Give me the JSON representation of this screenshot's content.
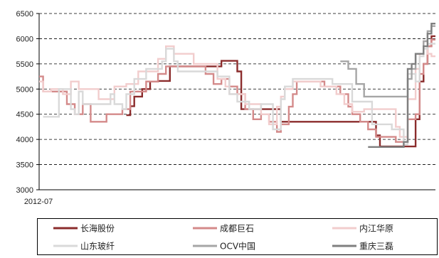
{
  "chart_data": {
    "type": "line",
    "title": "",
    "xlabel": "",
    "ylabel": "",
    "ylim": [
      3000,
      6500
    ],
    "yticks": [
      3000,
      3500,
      4000,
      4500,
      5000,
      5500,
      6000,
      6500
    ],
    "ytick_labels": [
      "3000",
      "3500",
      "4000",
      "4500",
      "5000",
      "5500",
      "6000",
      "6500"
    ],
    "xtick_labels": [
      "2012-07"
    ],
    "grid": "horizontal-dashed",
    "legend_position": "bottom",
    "series": [
      {
        "name": "长海股份",
        "color": "#8B2C2C",
        "values": [
          [
            0.22,
            4480
          ],
          [
            0.23,
            4480
          ],
          [
            0.23,
            4660
          ],
          [
            0.24,
            4660
          ],
          [
            0.24,
            4850
          ],
          [
            0.26,
            4850
          ],
          [
            0.26,
            5000
          ],
          [
            0.28,
            5000
          ],
          [
            0.28,
            5150
          ],
          [
            0.3,
            5150
          ],
          [
            0.3,
            5160
          ],
          [
            0.33,
            5160
          ],
          [
            0.33,
            5450
          ],
          [
            0.46,
            5450
          ],
          [
            0.46,
            5560
          ],
          [
            0.5,
            5560
          ],
          [
            0.5,
            5350
          ],
          [
            0.51,
            5350
          ],
          [
            0.51,
            4600
          ],
          [
            0.61,
            4600
          ],
          [
            0.61,
            4350
          ],
          [
            0.85,
            4350
          ],
          [
            0.85,
            4080
          ],
          [
            0.86,
            4080
          ],
          [
            0.86,
            3860
          ],
          [
            0.95,
            3860
          ],
          [
            0.95,
            4400
          ],
          [
            0.96,
            4400
          ],
          [
            0.96,
            5150
          ],
          [
            0.97,
            5150
          ],
          [
            0.97,
            5500
          ],
          [
            0.98,
            5500
          ],
          [
            0.98,
            5850
          ],
          [
            0.99,
            5850
          ],
          [
            0.99,
            6050
          ],
          [
            1.0,
            6050
          ]
        ]
      },
      {
        "name": "成都巨石",
        "color": "#D48A8A",
        "values": [
          [
            0.0,
            5250
          ],
          [
            0.01,
            5250
          ],
          [
            0.01,
            4950
          ],
          [
            0.07,
            4950
          ],
          [
            0.07,
            4700
          ],
          [
            0.09,
            4700
          ],
          [
            0.09,
            4500
          ],
          [
            0.11,
            4500
          ],
          [
            0.11,
            4700
          ],
          [
            0.13,
            4700
          ],
          [
            0.13,
            4350
          ],
          [
            0.17,
            4350
          ],
          [
            0.17,
            4500
          ],
          [
            0.21,
            4500
          ],
          [
            0.21,
            4600
          ],
          [
            0.23,
            4600
          ],
          [
            0.23,
            4950
          ],
          [
            0.27,
            4950
          ],
          [
            0.27,
            5150
          ],
          [
            0.3,
            5150
          ],
          [
            0.3,
            5300
          ],
          [
            0.32,
            5300
          ],
          [
            0.32,
            5450
          ],
          [
            0.42,
            5450
          ],
          [
            0.42,
            5300
          ],
          [
            0.44,
            5300
          ],
          [
            0.44,
            5100
          ],
          [
            0.46,
            5100
          ],
          [
            0.46,
            5200
          ],
          [
            0.48,
            5200
          ],
          [
            0.48,
            5050
          ],
          [
            0.5,
            5050
          ],
          [
            0.5,
            4900
          ],
          [
            0.52,
            4900
          ],
          [
            0.52,
            4600
          ],
          [
            0.54,
            4600
          ],
          [
            0.54,
            4400
          ],
          [
            0.56,
            4400
          ],
          [
            0.56,
            4500
          ],
          [
            0.58,
            4500
          ],
          [
            0.58,
            4350
          ],
          [
            0.6,
            4350
          ],
          [
            0.6,
            4150
          ],
          [
            0.61,
            4150
          ],
          [
            0.61,
            4300
          ],
          [
            0.63,
            4300
          ],
          [
            0.63,
            4650
          ],
          [
            0.64,
            4650
          ],
          [
            0.64,
            4900
          ],
          [
            0.65,
            4900
          ],
          [
            0.65,
            5150
          ],
          [
            0.72,
            5150
          ],
          [
            0.72,
            5050
          ],
          [
            0.76,
            5050
          ],
          [
            0.76,
            4900
          ],
          [
            0.78,
            4900
          ],
          [
            0.78,
            4650
          ],
          [
            0.79,
            4650
          ],
          [
            0.79,
            4500
          ],
          [
            0.81,
            4500
          ],
          [
            0.81,
            4350
          ],
          [
            0.83,
            4350
          ],
          [
            0.83,
            4200
          ],
          [
            0.85,
            4200
          ],
          [
            0.85,
            4050
          ],
          [
            0.9,
            4050
          ],
          [
            0.9,
            3950
          ],
          [
            0.93,
            3950
          ],
          [
            0.93,
            4400
          ],
          [
            0.95,
            4400
          ],
          [
            0.95,
            4500
          ],
          [
            0.96,
            4500
          ],
          [
            0.96,
            5300
          ],
          [
            0.97,
            5300
          ],
          [
            0.97,
            5500
          ],
          [
            0.98,
            5500
          ],
          [
            0.98,
            5850
          ],
          [
            0.99,
            5850
          ],
          [
            0.99,
            5980
          ],
          [
            1.0,
            5980
          ]
        ]
      },
      {
        "name": "内江华原",
        "color": "#F2CDCD",
        "values": [
          [
            0.0,
            5150
          ],
          [
            0.01,
            5150
          ],
          [
            0.01,
            4950
          ],
          [
            0.03,
            4950
          ],
          [
            0.03,
            5000
          ],
          [
            0.06,
            5000
          ],
          [
            0.06,
            4900
          ],
          [
            0.08,
            4900
          ],
          [
            0.08,
            5150
          ],
          [
            0.1,
            5150
          ],
          [
            0.1,
            5000
          ],
          [
            0.15,
            5000
          ],
          [
            0.15,
            4800
          ],
          [
            0.19,
            4800
          ],
          [
            0.19,
            5050
          ],
          [
            0.22,
            5050
          ],
          [
            0.22,
            5100
          ],
          [
            0.25,
            5100
          ],
          [
            0.25,
            5350
          ],
          [
            0.3,
            5350
          ],
          [
            0.3,
            5600
          ],
          [
            0.32,
            5600
          ],
          [
            0.32,
            5850
          ],
          [
            0.34,
            5850
          ],
          [
            0.34,
            5700
          ],
          [
            0.39,
            5700
          ],
          [
            0.39,
            5500
          ],
          [
            0.45,
            5500
          ],
          [
            0.45,
            5200
          ],
          [
            0.47,
            5200
          ],
          [
            0.47,
            5050
          ],
          [
            0.48,
            5050
          ],
          [
            0.48,
            4900
          ],
          [
            0.52,
            4900
          ],
          [
            0.52,
            4700
          ],
          [
            0.56,
            4700
          ],
          [
            0.56,
            4500
          ],
          [
            0.58,
            4500
          ],
          [
            0.58,
            4300
          ],
          [
            0.6,
            4300
          ],
          [
            0.6,
            4650
          ],
          [
            0.61,
            4650
          ],
          [
            0.61,
            4850
          ],
          [
            0.62,
            4850
          ],
          [
            0.62,
            5000
          ],
          [
            0.64,
            5000
          ],
          [
            0.64,
            5150
          ],
          [
            0.71,
            5150
          ],
          [
            0.71,
            5050
          ],
          [
            0.75,
            5050
          ],
          [
            0.75,
            4900
          ],
          [
            0.77,
            4900
          ],
          [
            0.77,
            4700
          ],
          [
            0.79,
            4700
          ],
          [
            0.79,
            4550
          ],
          [
            0.82,
            4550
          ],
          [
            0.82,
            4600
          ],
          [
            0.9,
            4600
          ],
          [
            0.9,
            4250
          ],
          [
            0.91,
            4250
          ],
          [
            0.91,
            4050
          ],
          [
            0.93,
            4050
          ],
          [
            0.93,
            4800
          ],
          [
            0.95,
            4800
          ],
          [
            0.95,
            5400
          ],
          [
            0.96,
            5400
          ],
          [
            0.96,
            5700
          ],
          [
            0.97,
            5700
          ],
          [
            0.97,
            5950
          ],
          [
            0.98,
            5950
          ],
          [
            0.98,
            5700
          ],
          [
            0.99,
            5700
          ],
          [
            0.99,
            5650
          ],
          [
            1.0,
            5650
          ]
        ]
      },
      {
        "name": "山东玻纤",
        "color": "#D9D9D9",
        "values": [
          [
            0.01,
            4450
          ],
          [
            0.05,
            4450
          ],
          [
            0.05,
            5000
          ],
          [
            0.08,
            5000
          ],
          [
            0.08,
            4600
          ],
          [
            0.09,
            4600
          ],
          [
            0.09,
            4500
          ],
          [
            0.1,
            4500
          ],
          [
            0.1,
            4950
          ],
          [
            0.11,
            4950
          ],
          [
            0.11,
            4700
          ],
          [
            0.18,
            4700
          ],
          [
            0.18,
            4900
          ],
          [
            0.19,
            4900
          ],
          [
            0.19,
            4700
          ],
          [
            0.21,
            4700
          ],
          [
            0.21,
            4600
          ],
          [
            0.22,
            4600
          ],
          [
            0.22,
            4900
          ],
          [
            0.24,
            4900
          ],
          [
            0.24,
            5200
          ],
          [
            0.27,
            5200
          ],
          [
            0.27,
            5400
          ],
          [
            0.31,
            5400
          ],
          [
            0.31,
            5550
          ],
          [
            0.32,
            5550
          ],
          [
            0.32,
            5800
          ],
          [
            0.34,
            5800
          ],
          [
            0.34,
            5550
          ],
          [
            0.35,
            5550
          ],
          [
            0.35,
            5350
          ],
          [
            0.45,
            5350
          ],
          [
            0.45,
            5250
          ],
          [
            0.48,
            5250
          ],
          [
            0.48,
            4900
          ],
          [
            0.5,
            4900
          ],
          [
            0.5,
            4750
          ],
          [
            0.53,
            4750
          ],
          [
            0.53,
            4600
          ],
          [
            0.56,
            4600
          ],
          [
            0.56,
            4700
          ],
          [
            0.59,
            4700
          ],
          [
            0.59,
            4200
          ],
          [
            0.61,
            4200
          ],
          [
            0.61,
            4800
          ],
          [
            0.62,
            4800
          ],
          [
            0.62,
            5050
          ],
          [
            0.64,
            5050
          ],
          [
            0.64,
            5200
          ],
          [
            0.74,
            5200
          ],
          [
            0.74,
            5100
          ],
          [
            0.79,
            5100
          ],
          [
            0.79,
            4750
          ],
          [
            0.84,
            4750
          ],
          [
            0.84,
            4300
          ],
          [
            0.89,
            4300
          ],
          [
            0.89,
            4200
          ],
          [
            0.92,
            4200
          ],
          [
            0.92,
            3900
          ],
          [
            0.93,
            3900
          ],
          [
            0.93,
            5300
          ],
          [
            0.95,
            5300
          ],
          [
            0.95,
            5150
          ],
          [
            0.96,
            5150
          ],
          [
            0.96,
            5650
          ],
          [
            0.97,
            5650
          ],
          [
            0.97,
            5800
          ],
          [
            0.98,
            5800
          ],
          [
            0.98,
            5900
          ],
          [
            1.0,
            5900
          ]
        ]
      },
      {
        "name": "OCV中国",
        "color": "#A6A6A6",
        "values": [
          [
            0.76,
            5550
          ],
          [
            0.78,
            5550
          ],
          [
            0.78,
            5400
          ],
          [
            0.8,
            5400
          ],
          [
            0.8,
            5100
          ],
          [
            0.82,
            5100
          ],
          [
            0.82,
            4850
          ],
          [
            0.93,
            4850
          ],
          [
            0.93,
            5200
          ],
          [
            0.94,
            5200
          ],
          [
            0.94,
            5400
          ],
          [
            0.95,
            5400
          ],
          [
            0.95,
            5700
          ],
          [
            0.97,
            5700
          ],
          [
            0.97,
            5950
          ],
          [
            0.98,
            5950
          ],
          [
            0.98,
            6150
          ],
          [
            0.99,
            6150
          ],
          [
            0.99,
            6250
          ],
          [
            1.0,
            6250
          ]
        ]
      },
      {
        "name": "重庆三磊",
        "color": "#7F7F7F",
        "values": [
          [
            0.83,
            3850
          ],
          [
            0.92,
            3850
          ],
          [
            0.92,
            3950
          ],
          [
            0.93,
            3950
          ],
          [
            0.93,
            5400
          ],
          [
            0.94,
            5400
          ],
          [
            0.94,
            5500
          ],
          [
            0.95,
            5500
          ],
          [
            0.95,
            5700
          ],
          [
            0.97,
            5700
          ],
          [
            0.97,
            5850
          ],
          [
            0.98,
            5850
          ],
          [
            0.98,
            6100
          ],
          [
            0.99,
            6100
          ],
          [
            0.99,
            6300
          ],
          [
            1.0,
            6300
          ]
        ]
      }
    ]
  }
}
